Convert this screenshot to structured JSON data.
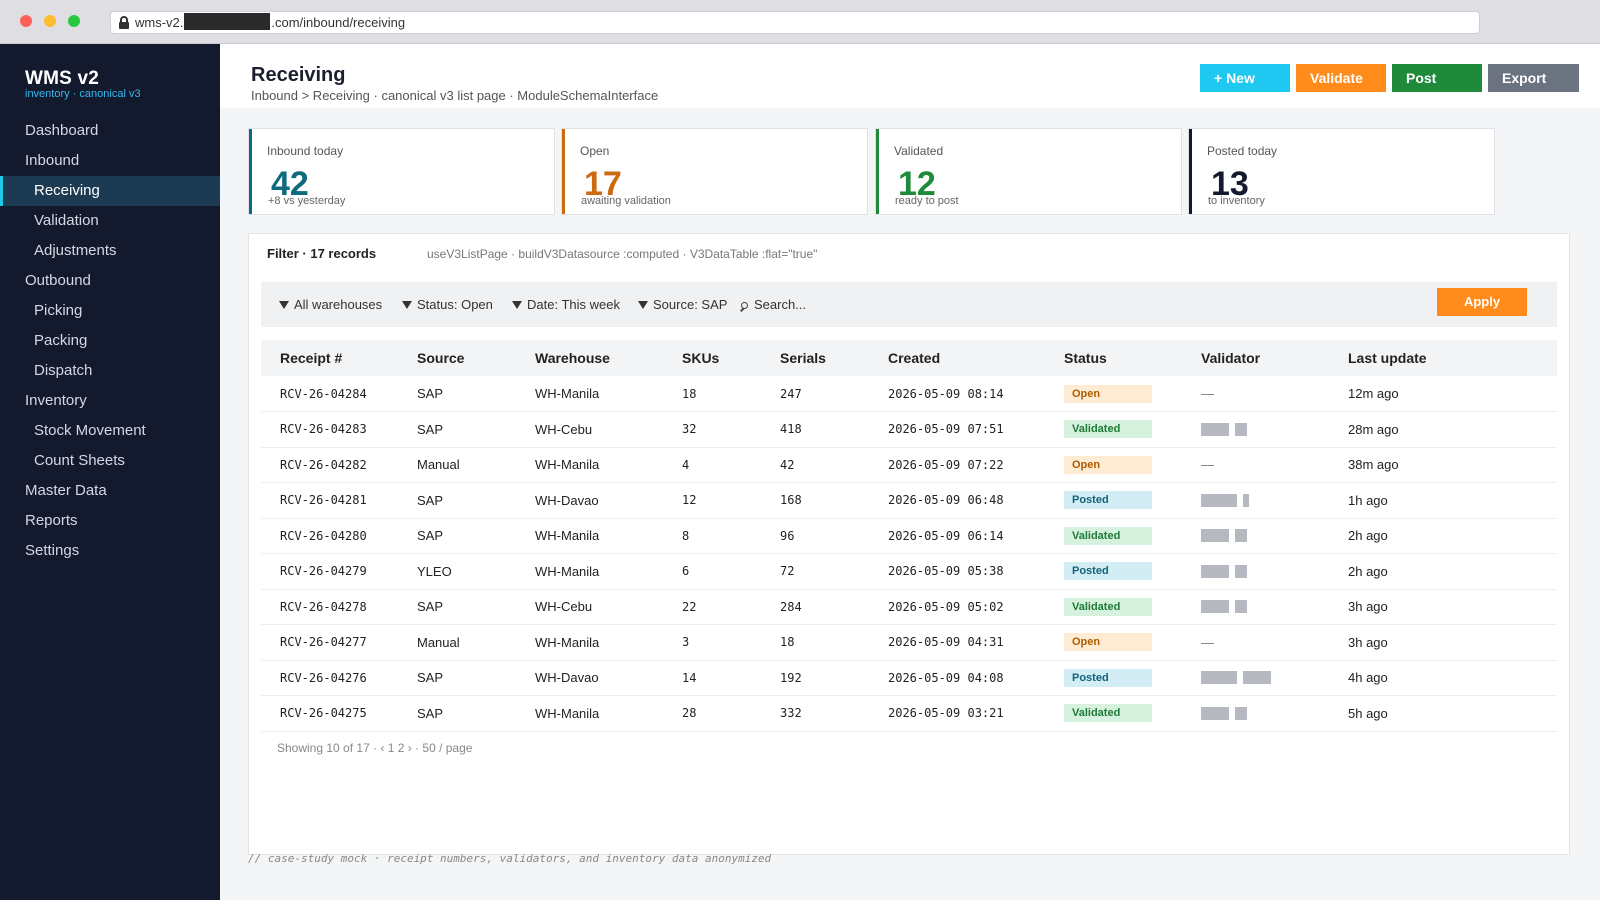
{
  "browser": {
    "url_prefix": "wms-v2.",
    "url_suffix": ".com/inbound/receiving"
  },
  "sidebar": {
    "brand": "WMS v2",
    "brand_sub": "inventory · canonical v3",
    "items": [
      {
        "label": "Dashboard",
        "sub": false
      },
      {
        "label": "Inbound",
        "sub": false
      },
      {
        "label": "Receiving",
        "sub": true,
        "active": true
      },
      {
        "label": "Validation",
        "sub": true
      },
      {
        "label": "Adjustments",
        "sub": true
      },
      {
        "label": "Outbound",
        "sub": false
      },
      {
        "label": "Picking",
        "sub": true
      },
      {
        "label": "Packing",
        "sub": true
      },
      {
        "label": "Dispatch",
        "sub": true
      },
      {
        "label": "Inventory",
        "sub": false
      },
      {
        "label": "Stock Movement",
        "sub": true
      },
      {
        "label": "Count Sheets",
        "sub": true
      },
      {
        "label": "Master Data",
        "sub": false
      },
      {
        "label": "Reports",
        "sub": false
      },
      {
        "label": "Settings",
        "sub": false
      }
    ]
  },
  "header": {
    "title": "Receiving",
    "breadcrumb": "Inbound  >  Receiving · canonical v3 list page · ModuleSchemaInterface",
    "buttons": {
      "new": "+ New",
      "validate": "Validate",
      "post": "Post",
      "export": "Export"
    }
  },
  "cards": [
    {
      "label": "Inbound today",
      "value": "42",
      "sub": "+8 vs yesterday",
      "color": "#0e6b7d"
    },
    {
      "label": "Open",
      "value": "17",
      "sub": "awaiting validation",
      "color": "#cc6a10"
    },
    {
      "label": "Validated",
      "value": "12",
      "sub": "ready to post",
      "color": "#1e8a3a"
    },
    {
      "label": "Posted today",
      "value": "13",
      "sub": "to inventory",
      "color": "#141a2e"
    }
  ],
  "filter": {
    "title": "Filter · 17 records",
    "tech": "useV3ListPage  ·  buildV3Datasource :computed  ·  V3DataTable :flat=\"true\"",
    "warehouses": "All warehouses",
    "status": "Status: Open",
    "date": "Date: This week",
    "source": "Source: SAP",
    "search_placeholder": "Search...",
    "apply": "Apply"
  },
  "table": {
    "columns": [
      "Receipt #",
      "Source",
      "Warehouse",
      "SKUs",
      "Serials",
      "Created",
      "Status",
      "Validator",
      "Last update"
    ],
    "rows": [
      {
        "receipt": "RCV-26-04284",
        "source": "SAP",
        "warehouse": "WH-Manila",
        "skus": "18",
        "serials": "247",
        "created": "2026-05-09 08:14",
        "status": "Open",
        "validator": "—",
        "updated": "12m ago"
      },
      {
        "receipt": "RCV-26-04283",
        "source": "SAP",
        "warehouse": "WH-Cebu",
        "skus": "32",
        "serials": "418",
        "created": "2026-05-09 07:51",
        "status": "Validated",
        "validator": "redacted",
        "updated": "28m ago"
      },
      {
        "receipt": "RCV-26-04282",
        "source": "Manual",
        "warehouse": "WH-Manila",
        "skus": "4",
        "serials": "42",
        "created": "2026-05-09 07:22",
        "status": "Open",
        "validator": "—",
        "updated": "38m ago"
      },
      {
        "receipt": "RCV-26-04281",
        "source": "SAP",
        "warehouse": "WH-Davao",
        "skus": "12",
        "serials": "168",
        "created": "2026-05-09 06:48",
        "status": "Posted",
        "validator": "redacted",
        "updated": "1h ago"
      },
      {
        "receipt": "RCV-26-04280",
        "source": "SAP",
        "warehouse": "WH-Manila",
        "skus": "8",
        "serials": "96",
        "created": "2026-05-09 06:14",
        "status": "Validated",
        "validator": "redacted",
        "updated": "2h ago"
      },
      {
        "receipt": "RCV-26-04279",
        "source": "YLEO",
        "warehouse": "WH-Manila",
        "skus": "6",
        "serials": "72",
        "created": "2026-05-09 05:38",
        "status": "Posted",
        "validator": "redacted",
        "updated": "2h ago"
      },
      {
        "receipt": "RCV-26-04278",
        "source": "SAP",
        "warehouse": "WH-Cebu",
        "skus": "22",
        "serials": "284",
        "created": "2026-05-09 05:02",
        "status": "Validated",
        "validator": "redacted",
        "updated": "3h ago"
      },
      {
        "receipt": "RCV-26-04277",
        "source": "Manual",
        "warehouse": "WH-Manila",
        "skus": "3",
        "serials": "18",
        "created": "2026-05-09 04:31",
        "status": "Open",
        "validator": "—",
        "updated": "3h ago"
      },
      {
        "receipt": "RCV-26-04276",
        "source": "SAP",
        "warehouse": "WH-Davao",
        "skus": "14",
        "serials": "192",
        "created": "2026-05-09 04:08",
        "status": "Posted",
        "validator": "redacted",
        "updated": "4h ago"
      },
      {
        "receipt": "RCV-26-04275",
        "source": "SAP",
        "warehouse": "WH-Manila",
        "skus": "28",
        "serials": "332",
        "created": "2026-05-09 03:21",
        "status": "Validated",
        "validator": "redacted",
        "updated": "5h ago"
      }
    ]
  },
  "pager": "Showing 10 of 17 · ‹ 1 2 › · 50 / page",
  "footnote": "// case-study mock · receipt numbers, validators, and inventory data anonymized"
}
